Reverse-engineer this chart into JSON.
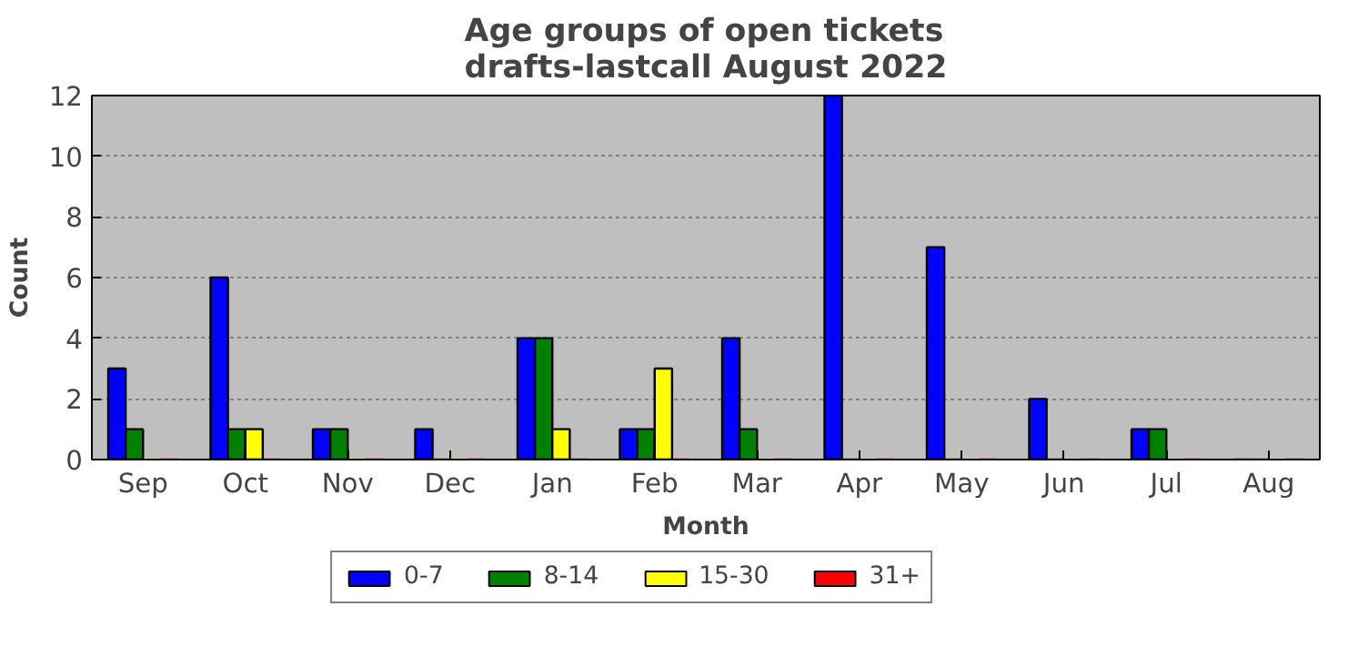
{
  "chart_data": {
    "type": "bar",
    "title": "Age groups of open tickets\ndrafts-lastcall August 2022",
    "xlabel": "Month",
    "ylabel": "Count",
    "categories": [
      "Sep",
      "Oct",
      "Nov",
      "Dec",
      "Jan",
      "Feb",
      "Mar",
      "Apr",
      "May",
      "Jun",
      "Jul",
      "Aug"
    ],
    "series": [
      {
        "name": "0-7",
        "color": "#0000ff",
        "values": [
          3,
          6,
          1,
          1,
          4,
          1,
          4,
          12,
          7,
          2,
          1,
          0
        ]
      },
      {
        "name": "8-14",
        "color": "#008000",
        "values": [
          1,
          1,
          1,
          0,
          4,
          1,
          1,
          0,
          0,
          0,
          1,
          0
        ]
      },
      {
        "name": "15-30",
        "color": "#ffff00",
        "values": [
          0,
          1,
          0,
          0,
          1,
          3,
          0,
          0,
          0,
          0,
          0,
          0
        ]
      },
      {
        "name": "31+",
        "color": "#ff0000",
        "values": [
          0,
          0,
          0,
          0,
          0,
          0,
          0,
          0,
          0,
          0,
          0,
          0
        ]
      }
    ],
    "ylim": [
      0,
      12
    ],
    "yticks": [
      0,
      2,
      4,
      6,
      8,
      10,
      12
    ],
    "grid": "y",
    "legend": "bottom"
  }
}
